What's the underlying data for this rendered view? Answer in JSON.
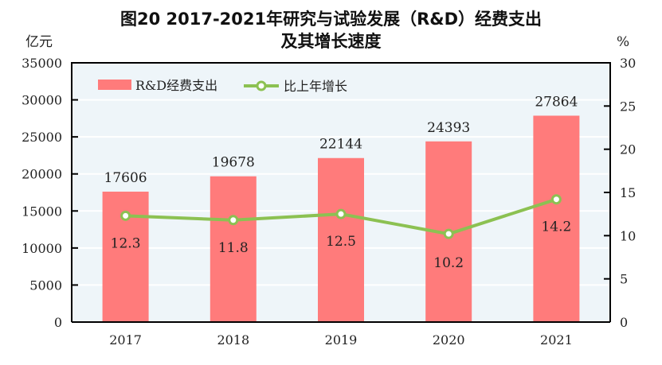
{
  "title_line1": "图20   2017-2021年研究与试验发展（R&D）经费支出",
  "title_line2": "及其增长速度",
  "chart_data": {
    "type": "bar+line",
    "categories": [
      "2017",
      "2018",
      "2019",
      "2020",
      "2021"
    ],
    "series": [
      {
        "name": "R&D经费支出",
        "type": "bar",
        "axis": "left",
        "values": [
          17606,
          19678,
          22144,
          24393,
          27864
        ],
        "color": "#ff7b7b"
      },
      {
        "name": "比上年增长",
        "type": "line",
        "axis": "right",
        "values": [
          12.3,
          11.8,
          12.5,
          10.2,
          14.2
        ],
        "color": "#8cc152"
      }
    ],
    "left_axis": {
      "unit": "亿元",
      "ylim": [
        0,
        35000
      ],
      "ticks": [
        0,
        5000,
        10000,
        15000,
        20000,
        25000,
        30000,
        35000
      ]
    },
    "right_axis": {
      "unit": "%",
      "ylim": [
        0,
        30
      ],
      "ticks": [
        0,
        5,
        10,
        15,
        20,
        25,
        30
      ]
    },
    "grid": true,
    "legend": "top-left",
    "plot_background": "#eef5f9"
  }
}
